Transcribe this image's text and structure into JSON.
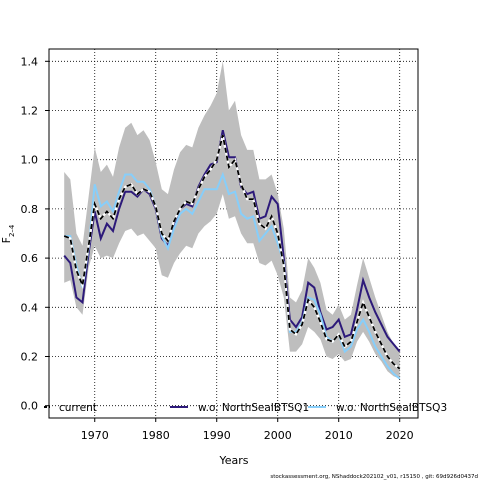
{
  "chart_data": {
    "type": "line",
    "xlabel": "Years",
    "ylabel_main": "F",
    "ylabel_sub": "2–4",
    "xlim": [
      1962.5,
      2023
    ],
    "ylim": [
      -0.05,
      1.45
    ],
    "xticks": [
      1970,
      1980,
      1990,
      2000,
      2010,
      2020
    ],
    "yticks": [
      "0.0",
      "0.2",
      "0.4",
      "0.6",
      "0.8",
      "1.0",
      "1.2",
      "1.4"
    ],
    "grid": true,
    "legend_position": "bottom",
    "footnote": "stockassessment.org, NShaddock202102_v01, r15150 , git: 69d926d0437d",
    "years": [
      1965,
      1966,
      1967,
      1968,
      1969,
      1970,
      1971,
      1972,
      1973,
      1974,
      1975,
      1976,
      1977,
      1978,
      1979,
      1980,
      1981,
      1982,
      1983,
      1984,
      1985,
      1986,
      1987,
      1988,
      1989,
      1990,
      1991,
      1992,
      1993,
      1994,
      1995,
      1996,
      1997,
      1998,
      1999,
      2000,
      2001,
      2002,
      2003,
      2004,
      2005,
      2006,
      2007,
      2008,
      2009,
      2010,
      2011,
      2012,
      2013,
      2014,
      2015,
      2016,
      2017,
      2018,
      2019,
      2020
    ],
    "band": {
      "upper": [
        0.95,
        0.92,
        0.7,
        0.65,
        0.85,
        1.05,
        0.95,
        0.98,
        0.93,
        1.05,
        1.13,
        1.15,
        1.1,
        1.12,
        1.08,
        0.99,
        0.88,
        0.86,
        0.96,
        1.03,
        1.06,
        1.05,
        1.13,
        1.18,
        1.22,
        1.27,
        1.4,
        1.2,
        1.24,
        1.1,
        1.04,
        1.04,
        0.92,
        0.92,
        0.94,
        0.86,
        0.72,
        0.44,
        0.42,
        0.47,
        0.6,
        0.56,
        0.5,
        0.39,
        0.37,
        0.41,
        0.35,
        0.37,
        0.49,
        0.6,
        0.52,
        0.44,
        0.37,
        0.3,
        0.25,
        0.22
      ],
      "lower": [
        0.5,
        0.51,
        0.4,
        0.37,
        0.56,
        0.65,
        0.6,
        0.61,
        0.6,
        0.66,
        0.71,
        0.72,
        0.69,
        0.7,
        0.67,
        0.64,
        0.53,
        0.52,
        0.58,
        0.62,
        0.65,
        0.64,
        0.7,
        0.73,
        0.75,
        0.78,
        0.86,
        0.76,
        0.77,
        0.7,
        0.66,
        0.66,
        0.58,
        0.57,
        0.59,
        0.53,
        0.44,
        0.22,
        0.22,
        0.25,
        0.32,
        0.3,
        0.27,
        0.2,
        0.19,
        0.21,
        0.18,
        0.19,
        0.26,
        0.3,
        0.26,
        0.21,
        0.18,
        0.14,
        0.12,
        0.11
      ]
    },
    "series": [
      {
        "name": "current",
        "color": "#000000",
        "dash": "5,3",
        "values": [
          0.69,
          0.68,
          0.55,
          0.49,
          0.65,
          0.82,
          0.76,
          0.79,
          0.76,
          0.84,
          0.89,
          0.9,
          0.86,
          0.88,
          0.87,
          0.81,
          0.7,
          0.67,
          0.75,
          0.8,
          0.83,
          0.82,
          0.88,
          0.93,
          0.96,
          1.0,
          1.1,
          0.97,
          1.0,
          0.9,
          0.84,
          0.84,
          0.74,
          0.72,
          0.77,
          0.7,
          0.57,
          0.31,
          0.29,
          0.33,
          0.43,
          0.4,
          0.34,
          0.27,
          0.26,
          0.29,
          0.24,
          0.26,
          0.34,
          0.42,
          0.36,
          0.3,
          0.25,
          0.2,
          0.17,
          0.15
        ]
      },
      {
        "name": "w.o. NorthSeaIBTSQ1",
        "color": "#2d1a7a",
        "dash": "",
        "values": [
          0.61,
          0.58,
          0.44,
          0.42,
          0.62,
          0.79,
          0.68,
          0.74,
          0.71,
          0.8,
          0.87,
          0.87,
          0.85,
          0.88,
          0.86,
          0.8,
          0.68,
          0.65,
          0.74,
          0.8,
          0.82,
          0.81,
          0.89,
          0.94,
          0.98,
          0.99,
          1.12,
          1.01,
          1.01,
          0.89,
          0.86,
          0.87,
          0.76,
          0.77,
          0.85,
          0.82,
          0.6,
          0.35,
          0.32,
          0.36,
          0.5,
          0.48,
          0.38,
          0.31,
          0.32,
          0.35,
          0.28,
          0.29,
          0.39,
          0.51,
          0.44,
          0.38,
          0.33,
          0.28,
          0.25,
          0.22
        ]
      },
      {
        "name": "w.o. NorthSeaIBTSQ3",
        "color": "#87cefa",
        "dash": "",
        "values": [
          0.69,
          0.69,
          0.57,
          0.48,
          0.64,
          0.9,
          0.81,
          0.83,
          0.79,
          0.87,
          0.94,
          0.94,
          0.91,
          0.91,
          0.88,
          0.81,
          0.69,
          0.64,
          0.72,
          0.78,
          0.8,
          0.78,
          0.83,
          0.88,
          0.88,
          0.88,
          0.94,
          0.86,
          0.87,
          0.78,
          0.76,
          0.77,
          0.67,
          0.7,
          0.73,
          0.66,
          0.58,
          0.3,
          0.3,
          0.34,
          0.44,
          0.43,
          0.37,
          0.28,
          0.26,
          0.29,
          0.22,
          0.24,
          0.31,
          0.35,
          0.3,
          0.24,
          0.2,
          0.16,
          0.13,
          0.11
        ]
      }
    ]
  }
}
